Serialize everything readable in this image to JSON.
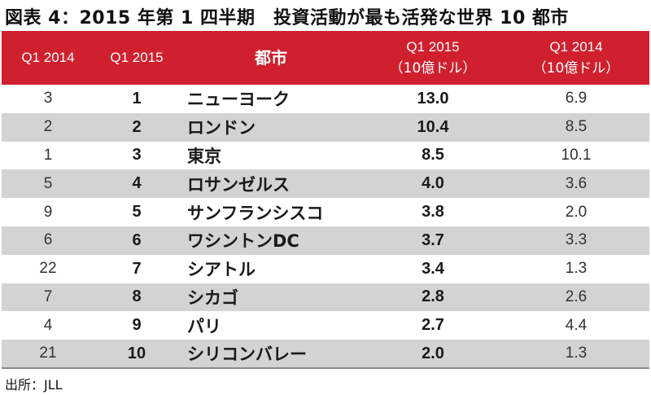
{
  "title": "図表 4：2015 年第 1 四半期　投資活動が最も活発な世界 10 都市",
  "table": {
    "headers": {
      "q1_2014_rank": "Q1 2014",
      "q1_2015_rank": "Q1 2015",
      "city": "都市",
      "q1_2015_value_line1": "Q1 2015",
      "q1_2015_value_line2": "（10億ドル）",
      "q1_2014_value_line1": "Q1 2014",
      "q1_2014_value_line2": "（10億ドル）"
    },
    "rows": [
      {
        "rank_2014": "3",
        "rank_2015": "1",
        "city": "ニューヨーク",
        "value_2015": "13.0",
        "value_2014": "6.9"
      },
      {
        "rank_2014": "2",
        "rank_2015": "2",
        "city": "ロンドン",
        "value_2015": "10.4",
        "value_2014": "8.5"
      },
      {
        "rank_2014": "1",
        "rank_2015": "3",
        "city": "東京",
        "value_2015": "8.5",
        "value_2014": "10.1"
      },
      {
        "rank_2014": "5",
        "rank_2015": "4",
        "city": "ロサンゼルス",
        "value_2015": "4.0",
        "value_2014": "3.6"
      },
      {
        "rank_2014": "9",
        "rank_2015": "5",
        "city": "サンフランシスコ",
        "value_2015": "3.8",
        "value_2014": "2.0"
      },
      {
        "rank_2014": "6",
        "rank_2015": "6",
        "city": "ワシントンDC",
        "value_2015": "3.7",
        "value_2014": "3.3"
      },
      {
        "rank_2014": "22",
        "rank_2015": "7",
        "city": "シアトル",
        "value_2015": "3.4",
        "value_2014": "1.3"
      },
      {
        "rank_2014": "7",
        "rank_2015": "8",
        "city": "シカゴ",
        "value_2015": "2.8",
        "value_2014": "2.6"
      },
      {
        "rank_2014": "4",
        "rank_2015": "9",
        "city": "パリ",
        "value_2015": "2.7",
        "value_2014": "4.4"
      },
      {
        "rank_2014": "21",
        "rank_2015": "10",
        "city": "シリコンバレー",
        "value_2015": "2.0",
        "value_2014": "1.3"
      }
    ]
  },
  "source": "出所：JLL",
  "colors": {
    "header_bg": "#d0202e",
    "shaded_row": "#d3d3d3"
  }
}
